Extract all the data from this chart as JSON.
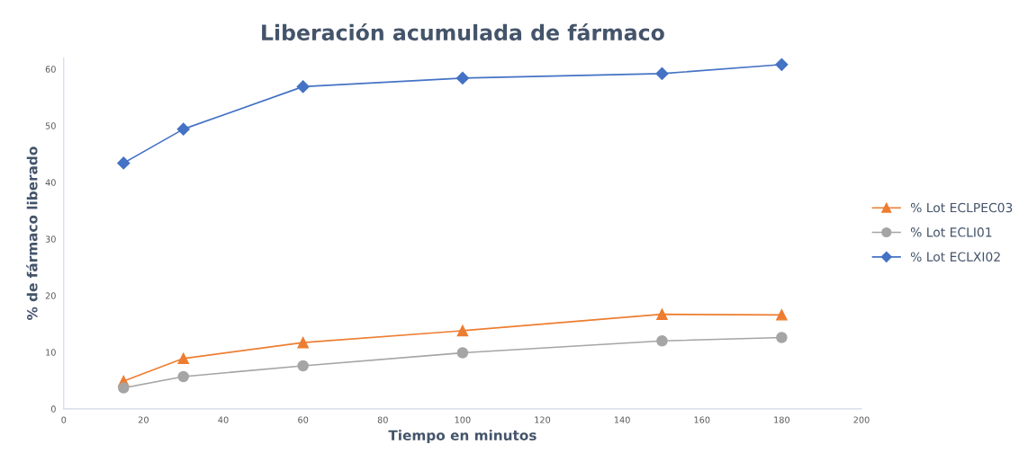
{
  "chart_data": {
    "type": "line",
    "title": "Liberación acumulada de fármaco",
    "xlabel": "Tiempo en minutos",
    "ylabel": "% de fármaco liberado",
    "x": [
      15,
      30,
      60,
      100,
      150,
      180
    ],
    "series": [
      {
        "name": "% Lot ECLPEC03",
        "color": "#ed7d31",
        "marker": "triangle",
        "values": [
          4.9,
          8.9,
          11.7,
          13.8,
          16.7,
          16.6
        ]
      },
      {
        "name": "% Lot ECLI01",
        "color": "#a5a5a5",
        "marker": "circle",
        "values": [
          3.7,
          5.7,
          7.6,
          9.9,
          12.0,
          12.6
        ]
      },
      {
        "name": "% Lot ECLXI02",
        "color": "#4472c4",
        "marker": "diamond",
        "values": [
          43.4,
          49.4,
          56.9,
          58.4,
          59.2,
          60.8
        ]
      }
    ],
    "xlim": [
      0,
      200
    ],
    "xticks": [
      0,
      20,
      40,
      60,
      80,
      100,
      120,
      140,
      160,
      180,
      200
    ],
    "ylim": [
      0,
      62
    ],
    "yticks": [
      0,
      10,
      20,
      30,
      40,
      50,
      60
    ],
    "grid": false,
    "legend": "right",
    "line_style": "solid"
  }
}
